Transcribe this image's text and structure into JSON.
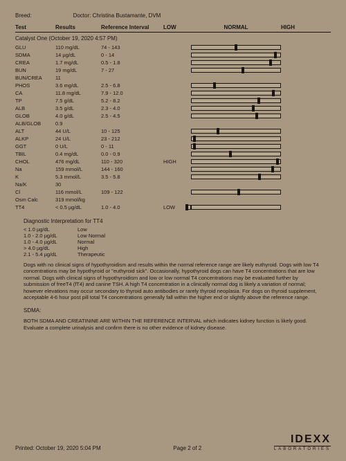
{
  "header": {
    "breed_label": "Breed:",
    "doctor_label": "Doctor:",
    "doctor": "Christina Bustamante, DVM"
  },
  "columns": {
    "test": "Test",
    "results": "Results",
    "ref": "Reference Interval",
    "low": "LOW",
    "normal": "NORMAL",
    "high": "HIGH"
  },
  "panel_title": "Catalyst One (October 19, 2020 4:57 PM)",
  "rows": [
    {
      "t": "GLU",
      "r": "110 mg/dL",
      "ref": "74 - 143",
      "flag": "",
      "mark": 0.5,
      "bar": true
    },
    {
      "t": "SDMA",
      "r": "14 µg/dL",
      "ref": "0 - 14",
      "flag": "",
      "mark": 0.95,
      "bar": true
    },
    {
      "t": "CREA",
      "r": "1.7 mg/dL",
      "ref": "0.5 - 1.8",
      "flag": "",
      "mark": 0.9,
      "bar": true
    },
    {
      "t": "BUN",
      "r": "19 mg/dL",
      "ref": "7 - 27",
      "flag": "",
      "mark": 0.58,
      "bar": true
    },
    {
      "t": "BUN/CREA",
      "r": "11",
      "ref": "",
      "flag": "",
      "mark": null,
      "bar": false
    },
    {
      "t": "PHOS",
      "r": "3.6 mg/dL",
      "ref": "2.5 - 6.8",
      "flag": "",
      "mark": 0.25,
      "bar": true
    },
    {
      "t": "CA",
      "r": "11.8 mg/dL",
      "ref": "7.9 - 12.0",
      "flag": "",
      "mark": 0.93,
      "bar": true
    },
    {
      "t": "TP",
      "r": "7.5 g/dL",
      "ref": "5.2 - 8.2",
      "flag": "",
      "mark": 0.76,
      "bar": true
    },
    {
      "t": "ALB",
      "r": "3.5 g/dL",
      "ref": "2.3 - 4.0",
      "flag": "",
      "mark": 0.7,
      "bar": true
    },
    {
      "t": "GLOB",
      "r": "4.0 g/dL",
      "ref": "2.5 - 4.5",
      "flag": "",
      "mark": 0.74,
      "bar": true
    },
    {
      "t": "ALB/GLOB",
      "r": "0.9",
      "ref": "",
      "flag": "",
      "mark": null,
      "bar": false
    },
    {
      "t": "ALT",
      "r": "44 U/L",
      "ref": "10 - 125",
      "flag": "",
      "mark": 0.29,
      "bar": true
    },
    {
      "t": "ALKP",
      "r": "24 U/L",
      "ref": "23 - 212",
      "flag": "",
      "mark": 0.02,
      "bar": true
    },
    {
      "t": "GGT",
      "r": "0 U/L",
      "ref": "0 - 11",
      "flag": "",
      "mark": 0.02,
      "bar": true
    },
    {
      "t": "TBIL",
      "r": "0.4 mg/dL",
      "ref": "0.0 - 0.9",
      "flag": "",
      "mark": 0.44,
      "bar": true
    },
    {
      "t": "CHOL",
      "r": "476 mg/dL",
      "ref": "110 - 320",
      "flag": "HIGH",
      "mark": 0.98,
      "bar": true
    },
    {
      "t": "Na",
      "r": "159 mmol/L",
      "ref": "144 - 160",
      "flag": "",
      "mark": 0.92,
      "bar": true
    },
    {
      "t": "K",
      "r": "5.3 mmol/L",
      "ref": "3.5 - 5.8",
      "flag": "",
      "mark": 0.77,
      "bar": true
    },
    {
      "t": "Na/K",
      "r": "30",
      "ref": "",
      "flag": "",
      "mark": null,
      "bar": false
    },
    {
      "t": "Cl",
      "r": "116 mmol/L",
      "ref": "109 - 122",
      "flag": "",
      "mark": 0.53,
      "bar": true
    },
    {
      "t": "Osm Calc",
      "r": "319 mmol/kg",
      "ref": "",
      "flag": "",
      "mark": null,
      "bar": false
    },
    {
      "t": "TT4",
      "r": "< 0.5 µg/dL",
      "ref": "1.0 - 4.0",
      "flag": "LOW",
      "mark": null,
      "bar": true,
      "low": true
    }
  ],
  "interp": {
    "title": "Diagnostic Interpretation for TT4",
    "items": [
      {
        "r": "< 1.0 µg/dL",
        "l": "Low"
      },
      {
        "r": "1.0 - 2.0 µg/dL",
        "l": "Low Normal"
      },
      {
        "r": "1.0 - 4.0 µg/dL",
        "l": "Normal"
      },
      {
        "r": "> 4.0 µg/dL",
        "l": "High"
      },
      {
        "r": "2.1 - 5.4 µg/dL",
        "l": "Therapeutic"
      }
    ]
  },
  "para1": "Dogs with no clinical signs of hypothyroidism and results within the normal reference range are likely euthyroid. Dogs with low T4 concentrations may be hypothyroid or \"euthyroid sick\". Occasionally, hypothyroid dogs can have T4 concentrations that are low normal. Dogs with clinical signs of hypothyroidism and low or low normal T4 concentrations may be evaluated further by submission of freeT4 (fT4) and canine TSH. A high T4 concentration in a clinically normal dog is likely a variation of normal; however elevations may occur secondary to thyroid auto antibodies or rarely thyroid neoplasia. For dogs on thyroid supplement, acceptable 4-6 hour post pill total T4 concentrations generally fall within the higher end or slightly above the reference range.",
  "sdma_label": "SDMA:",
  "para2": "BOTH SDMA AND CREATININE ARE WITHIN THE REFERENCE INTERVAL which indicates kidney function is likely good. Evaluate a complete urinalysis and confirm there is no other evidence of kidney disease.",
  "footer": {
    "printed": "Printed: October 19, 2020 5:04 PM",
    "page": "Page 2 of 2",
    "logo_main": "IDEXX",
    "logo_sub": "LABORATORIES"
  }
}
